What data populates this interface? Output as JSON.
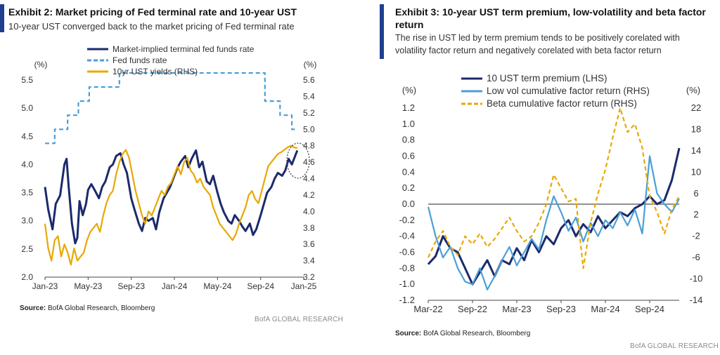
{
  "exhibit2": {
    "title": "Exhibit 2: Market pricing of Fed terminal rate and 10-year UST",
    "subtitle": "10-year UST converged back to the market pricing of Fed terminal rate",
    "source_label": "Source:",
    "source_text": " BofA Global Research, Bloomberg",
    "brand": "BofA GLOBAL RESEARCH"
  },
  "exhibit3": {
    "title_line1": "Exhibit 3: 10-year UST term premium, low-volatility and beta factor",
    "title_line2": "return",
    "subtitle_line1": "The rise in UST led by term premium tends to be positively corelated with",
    "subtitle_line2": "volatility factor return and negatively corelated with beta factor return",
    "source_label": "Source:",
    "source_text": " BofA Global Research, Bloomberg",
    "brand": "BofA GLOBAL RESEARCH"
  },
  "colors": {
    "navy": "#1b2a6b",
    "lightblue": "#4a9fd8",
    "gold": "#e8a800",
    "accent": "#1f3f8f"
  },
  "chart_data": [
    {
      "type": "line",
      "title": "Market pricing of Fed terminal rate and 10-year UST",
      "xlabel": "",
      "ylabel_left": "(%)",
      "ylabel_right": "(%)",
      "x_ticks": [
        "Jan-23",
        "May-23",
        "Sep-23",
        "Jan-24",
        "May-24",
        "Sep-24",
        "Jan-25"
      ],
      "y_left_ticks": [
        "5.5",
        "5.0",
        "4.5",
        "4.0",
        "3.5",
        "3.0",
        "2.5",
        "2.0"
      ],
      "y_right_ticks": [
        "5.6",
        "5.4",
        "5.2",
        "5.0",
        "4.8",
        "4.6",
        "4.4",
        "4.2",
        "4.0",
        "3.8",
        "3.6",
        "3.4",
        "3.2"
      ],
      "ylim_left": [
        2.0,
        5.5
      ],
      "ylim_right": [
        3.2,
        5.6
      ],
      "x_months": [
        0,
        24
      ],
      "legend_position": "top-left",
      "series": [
        {
          "name": "Market-implied terminal fed funds rate",
          "axis": "left",
          "style": "solid",
          "color": "#1b2a6b",
          "x": [
            0,
            0.3,
            0.7,
            1.0,
            1.4,
            1.8,
            2.0,
            2.2,
            2.5,
            2.8,
            3.0,
            3.2,
            3.5,
            3.8,
            4.0,
            4.3,
            4.6,
            5.0,
            5.3,
            5.6,
            6.0,
            6.3,
            6.6,
            7.0,
            7.3,
            7.6,
            8.0,
            8.3,
            8.7,
            9.0,
            9.3,
            9.6,
            10.0,
            10.3,
            10.6,
            11.0,
            11.3,
            11.6,
            12.0,
            12.3,
            12.6,
            13.0,
            13.3,
            13.6,
            14.0,
            14.3,
            14.6,
            15.0,
            15.3,
            15.6,
            16.0,
            16.3,
            16.6,
            17.0,
            17.3,
            17.6,
            18.0,
            18.3,
            18.6,
            19.0,
            19.3,
            19.6,
            20.0,
            20.3,
            20.6,
            21.0,
            21.3,
            21.6,
            22.0,
            22.3,
            22.6,
            22.9,
            23.2,
            23.4
          ],
          "values": [
            3.6,
            3.2,
            2.85,
            3.3,
            3.45,
            4.0,
            4.1,
            3.6,
            2.95,
            2.6,
            2.7,
            3.35,
            3.1,
            3.3,
            3.55,
            3.65,
            3.55,
            3.4,
            3.6,
            3.7,
            3.95,
            4.0,
            4.15,
            4.2,
            4.0,
            3.85,
            3.4,
            3.2,
            2.95,
            2.82,
            3.05,
            3.0,
            3.05,
            2.85,
            3.15,
            3.4,
            3.5,
            3.6,
            3.8,
            3.95,
            4.05,
            4.15,
            3.95,
            4.1,
            4.25,
            3.95,
            4.05,
            3.7,
            3.65,
            3.8,
            3.5,
            3.3,
            3.15,
            3.0,
            2.95,
            3.1,
            3.0,
            2.9,
            2.82,
            2.95,
            2.75,
            2.85,
            3.1,
            3.3,
            3.5,
            3.6,
            3.75,
            3.85,
            3.8,
            3.9,
            4.1,
            4.0,
            4.15,
            4.25
          ]
        },
        {
          "name": "Fed funds rate",
          "axis": "left",
          "style": "dashed",
          "color": "#4a9fd8",
          "x": [
            0,
            0.9,
            0.9,
            2.1,
            2.1,
            3.1,
            3.1,
            4.1,
            4.1,
            5.0,
            5.0,
            6.9,
            6.9,
            20.4,
            20.4,
            21.8,
            21.8,
            22.9,
            22.9,
            23.4
          ],
          "values": [
            4.375,
            4.375,
            4.625,
            4.625,
            4.875,
            4.875,
            5.125,
            5.125,
            5.375,
            5.375,
            5.375,
            5.375,
            5.625,
            5.625,
            5.125,
            5.125,
            4.875,
            4.875,
            4.625,
            4.625
          ]
        },
        {
          "name": "10yr UST yields (RHS)",
          "axis": "right",
          "style": "solid",
          "color": "#e8a800",
          "x": [
            0,
            0.3,
            0.6,
            0.9,
            1.2,
            1.5,
            1.8,
            2.1,
            2.4,
            2.7,
            3.0,
            3.3,
            3.6,
            3.9,
            4.2,
            4.5,
            4.8,
            5.1,
            5.4,
            5.7,
            6.0,
            6.3,
            6.6,
            6.9,
            7.2,
            7.5,
            7.8,
            8.1,
            8.4,
            8.7,
            9.0,
            9.3,
            9.6,
            9.9,
            10.2,
            10.5,
            10.8,
            11.1,
            11.4,
            11.7,
            12.0,
            12.3,
            12.6,
            12.9,
            13.2,
            13.5,
            13.8,
            14.1,
            14.4,
            14.7,
            15.0,
            15.3,
            15.6,
            15.9,
            16.2,
            16.5,
            16.8,
            17.1,
            17.4,
            17.7,
            18.0,
            18.3,
            18.6,
            18.9,
            19.2,
            19.5,
            19.8,
            20.1,
            20.4,
            20.7,
            21.0,
            21.3,
            21.6,
            21.9,
            22.2,
            22.5,
            22.8,
            23.1,
            23.4
          ],
          "values": [
            3.85,
            3.55,
            3.4,
            3.65,
            3.7,
            3.45,
            3.6,
            3.5,
            3.35,
            3.55,
            3.4,
            3.45,
            3.5,
            3.65,
            3.75,
            3.8,
            3.85,
            3.75,
            3.95,
            4.1,
            4.2,
            4.25,
            4.45,
            4.6,
            4.7,
            4.75,
            4.65,
            4.45,
            4.25,
            4.1,
            3.95,
            3.85,
            4.0,
            3.95,
            4.05,
            4.15,
            4.25,
            4.2,
            4.3,
            4.35,
            4.45,
            4.55,
            4.45,
            4.6,
            4.65,
            4.5,
            4.45,
            4.35,
            4.4,
            4.3,
            4.25,
            4.2,
            4.05,
            3.95,
            3.85,
            3.8,
            3.75,
            3.7,
            3.65,
            3.72,
            3.85,
            3.95,
            4.05,
            4.2,
            4.25,
            4.15,
            4.1,
            4.25,
            4.4,
            4.55,
            4.6,
            4.65,
            4.7,
            4.72,
            4.75,
            4.78,
            4.8,
            4.78,
            4.77
          ]
        }
      ],
      "annotation": "dotted circle around latest convergence"
    },
    {
      "type": "line",
      "title": "10-year UST term premium, low-volatility and beta factor return",
      "xlabel": "",
      "ylabel_left": "(%)",
      "ylabel_right": "(%)",
      "x_ticks": [
        "Mar-22",
        "Sep-22",
        "Mar-23",
        "Sep-23",
        "Mar-24",
        "Sep-24"
      ],
      "y_left_ticks": [
        "1.2",
        "1.0",
        "0.8",
        "0.6",
        "0.4",
        "0.2",
        "0.0",
        "-0.2",
        "-0.4",
        "-0.6",
        "-0.8",
        "-1.0",
        "-1.2"
      ],
      "y_right_ticks": [
        "22",
        "18",
        "14",
        "10",
        "6",
        "2",
        "-2",
        "-6",
        "-10",
        "-14"
      ],
      "ylim_left": [
        -1.2,
        1.2
      ],
      "ylim_right": [
        -14,
        22
      ],
      "x_months": [
        0,
        34
      ],
      "legend_position": "top-left",
      "series": [
        {
          "name": "10 UST term premium (LHS)",
          "axis": "left",
          "style": "solid",
          "color": "#1b2a6b",
          "x": [
            0,
            1,
            2,
            3,
            4,
            5,
            6,
            7,
            8,
            9,
            10,
            11,
            12,
            13,
            14,
            15,
            16,
            17,
            18,
            19,
            20,
            21,
            22,
            23,
            24,
            25,
            26,
            27,
            28,
            29,
            30,
            31,
            32,
            33,
            34
          ],
          "values": [
            -0.75,
            -0.65,
            -0.4,
            -0.55,
            -0.6,
            -0.8,
            -1.0,
            -0.85,
            -0.7,
            -0.9,
            -0.7,
            -0.75,
            -0.55,
            -0.7,
            -0.45,
            -0.6,
            -0.4,
            -0.5,
            -0.3,
            -0.2,
            -0.4,
            -0.25,
            -0.35,
            -0.15,
            -0.3,
            -0.2,
            -0.1,
            -0.15,
            -0.05,
            0.0,
            0.1,
            0.0,
            0.05,
            0.3,
            0.7
          ]
        },
        {
          "name": "Low vol cumulative factor return (RHS)",
          "axis": "right",
          "style": "solid",
          "color": "#4a9fd8",
          "x": [
            0,
            1,
            2,
            3,
            4,
            5,
            6,
            7,
            8,
            9,
            10,
            11,
            12,
            13,
            14,
            15,
            16,
            17,
            18,
            19,
            20,
            21,
            22,
            23,
            24,
            25,
            26,
            27,
            28,
            29,
            30,
            31,
            32,
            33,
            34
          ],
          "values": [
            3.5,
            -2.0,
            -6.0,
            -4.0,
            -8.0,
            -10.5,
            -11.0,
            -8.0,
            -12.0,
            -9.5,
            -6.5,
            -4.0,
            -7.5,
            -5.0,
            -2.5,
            -4.5,
            1.0,
            5.5,
            2.5,
            -1.0,
            1.5,
            -3.0,
            0.5,
            -2.0,
            1.0,
            -0.5,
            2.5,
            0.0,
            3.0,
            -1.5,
            13.0,
            6.0,
            4.0,
            2.5,
            5.0
          ]
        },
        {
          "name": "Beta cumulative factor return (RHS)",
          "axis": "right",
          "style": "dashed",
          "color": "#e8a800",
          "x": [
            0,
            1,
            2,
            3,
            4,
            5,
            6,
            7,
            8,
            9,
            10,
            11,
            12,
            13,
            14,
            15,
            16,
            17,
            18,
            19,
            20,
            21,
            22,
            23,
            24,
            25,
            26,
            27,
            28,
            29,
            30,
            31,
            32,
            33,
            34
          ],
          "values": [
            -6.0,
            -3.0,
            -1.0,
            -4.0,
            -5.5,
            -2.0,
            -3.5,
            -1.5,
            -4.0,
            -2.5,
            -0.5,
            1.5,
            -1.0,
            -3.0,
            -2.0,
            0.5,
            4.0,
            9.5,
            7.0,
            4.5,
            5.0,
            -8.0,
            0.5,
            6.0,
            10.5,
            16.5,
            22.0,
            17.5,
            19.0,
            14.5,
            5.5,
            2.5,
            -1.5,
            3.0,
            5.5
          ]
        }
      ]
    }
  ],
  "legend": {
    "c1": [
      "Market-implied terminal fed funds rate",
      "Fed funds rate",
      "10yr UST yields (RHS)"
    ],
    "c2": [
      "10 UST term premium (LHS)",
      "Low vol cumulative factor return (RHS)",
      "Beta cumulative factor return (RHS)"
    ]
  }
}
